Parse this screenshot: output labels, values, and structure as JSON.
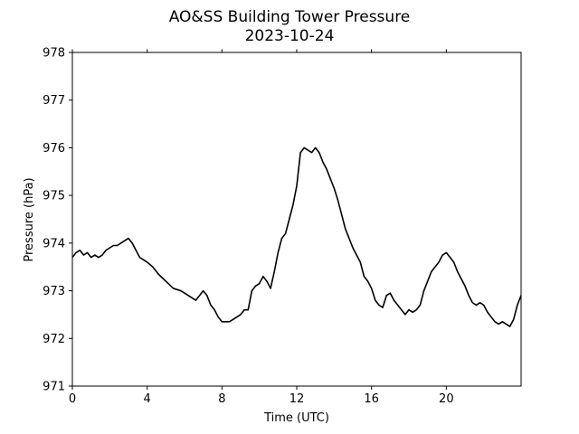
{
  "chart_data": {
    "type": "line",
    "title": "AO&SS Building Tower Pressure",
    "subtitle": "2023-10-24",
    "xlabel": "Time (UTC)",
    "ylabel": "Pressure (hPa)",
    "xlim": [
      0,
      24
    ],
    "ylim": [
      971,
      978
    ],
    "xticks": [
      0,
      4,
      8,
      12,
      16,
      20
    ],
    "yticks": [
      971,
      972,
      973,
      974,
      975,
      976,
      977,
      978
    ],
    "grid": false,
    "line_color": "#000000",
    "series": [
      {
        "x": [
          0,
          0.2,
          0.4,
          0.6,
          0.8,
          1.0,
          1.2,
          1.4,
          1.6,
          1.8,
          2.0,
          2.2,
          2.4,
          2.6,
          2.8,
          3.0,
          3.2,
          3.4,
          3.6,
          3.8,
          4.0,
          4.3,
          4.6,
          5.0,
          5.4,
          5.8,
          6.2,
          6.6,
          7.0,
          7.2,
          7.4,
          7.6,
          7.8,
          8.0,
          8.2,
          8.4,
          8.6,
          8.8,
          9.0,
          9.2,
          9.4,
          9.6,
          9.8,
          10.0,
          10.2,
          10.4,
          10.6,
          10.8,
          11.0,
          11.2,
          11.4,
          11.6,
          11.8,
          12.0,
          12.2,
          12.4,
          12.6,
          12.8,
          13.0,
          13.2,
          13.4,
          13.6,
          13.8,
          14.0,
          14.2,
          14.4,
          14.6,
          14.8,
          15.0,
          15.2,
          15.4,
          15.6,
          15.8,
          16.0,
          16.2,
          16.4,
          16.6,
          16.8,
          17.0,
          17.2,
          17.4,
          17.6,
          17.8,
          18.0,
          18.2,
          18.4,
          18.6,
          18.8,
          19.0,
          19.2,
          19.4,
          19.6,
          19.8,
          20.0,
          20.2,
          20.4,
          20.6,
          20.8,
          21.0,
          21.2,
          21.4,
          21.6,
          21.8,
          22.0,
          22.2,
          22.4,
          22.6,
          22.8,
          23.0,
          23.2,
          23.4,
          23.6,
          23.8,
          24.0
        ],
        "y": [
          973.7,
          973.8,
          973.85,
          973.75,
          973.8,
          973.7,
          973.75,
          973.7,
          973.75,
          973.85,
          973.9,
          973.95,
          973.95,
          974.0,
          974.05,
          974.1,
          974.0,
          973.85,
          973.7,
          973.65,
          973.6,
          973.5,
          973.35,
          973.2,
          973.05,
          973.0,
          972.9,
          972.8,
          973.0,
          972.9,
          972.7,
          972.6,
          972.45,
          972.35,
          972.35,
          972.35,
          972.4,
          972.45,
          972.5,
          972.6,
          972.6,
          973.0,
          973.1,
          973.15,
          973.3,
          973.2,
          973.05,
          973.4,
          973.8,
          974.1,
          974.2,
          974.5,
          974.8,
          975.2,
          975.9,
          976.0,
          975.95,
          975.9,
          976.0,
          975.9,
          975.7,
          975.55,
          975.35,
          975.15,
          974.9,
          974.6,
          974.3,
          974.1,
          973.9,
          973.75,
          973.6,
          973.3,
          973.2,
          973.05,
          972.8,
          972.7,
          972.65,
          972.9,
          972.95,
          972.8,
          972.7,
          972.6,
          972.5,
          972.6,
          972.55,
          972.6,
          972.7,
          973.0,
          973.2,
          973.4,
          973.5,
          973.6,
          973.75,
          973.8,
          973.7,
          973.6,
          973.4,
          973.25,
          973.1,
          972.9,
          972.75,
          972.7,
          972.75,
          972.7,
          972.55,
          972.45,
          972.35,
          972.3,
          972.35,
          972.3,
          972.25,
          972.4,
          972.7,
          972.9
        ]
      }
    ]
  }
}
